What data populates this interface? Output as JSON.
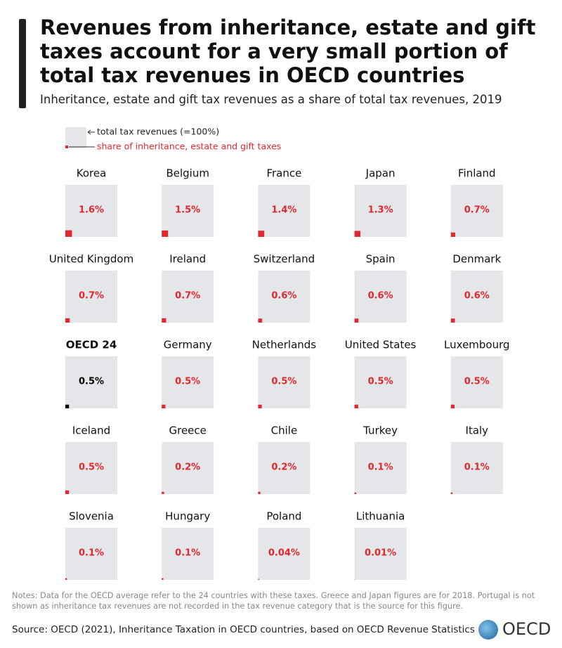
{
  "chart_data": {
    "type": "square-area",
    "title": "Revenues from inheritance, estate and gift taxes account for a very small portion of total tax revenues in OECD countries",
    "subtitle": "Inheritance, estate and gift tax revenues as a share of total tax revenues, 2019",
    "legend": {
      "total": "total tax revenues (=100%)",
      "share": "share of inheritance, estate and gift taxes"
    },
    "categories": [
      "Korea",
      "Belgium",
      "France",
      "Japan",
      "Finland",
      "United Kingdom",
      "Ireland",
      "Switzerland",
      "Spain",
      "Denmark",
      "OECD 24",
      "Germany",
      "Netherlands",
      "United States",
      "Luxembourg",
      "Iceland",
      "Greece",
      "Chile",
      "Turkey",
      "Italy",
      "Slovenia",
      "Hungary",
      "Poland",
      "Lithuania"
    ],
    "values": [
      1.6,
      1.5,
      1.4,
      1.3,
      0.7,
      0.7,
      0.7,
      0.6,
      0.6,
      0.6,
      0.5,
      0.5,
      0.5,
      0.5,
      0.5,
      0.5,
      0.2,
      0.2,
      0.1,
      0.1,
      0.1,
      0.1,
      0.04,
      0.01
    ],
    "value_labels": [
      "1.6%",
      "1.5%",
      "1.4%",
      "1.3%",
      "0.7%",
      "0.7%",
      "0.7%",
      "0.6%",
      "0.6%",
      "0.6%",
      "0.5%",
      "0.5%",
      "0.5%",
      "0.5%",
      "0.5%",
      "0.5%",
      "0.2%",
      "0.2%",
      "0.1%",
      "0.1%",
      "0.1%",
      "0.1%",
      "0.04%",
      "0.01%"
    ],
    "total": 100,
    "color": "#e0282e",
    "highlight": "OECD 24",
    "highlight_color": "#000000",
    "box_color": "#e4e6e9"
  },
  "notes": "Notes: Data for the OECD average refer to the 24 countries with these taxes. Greece and Japan figures are for 2018. Portugal is not shown as inheritance tax revenues are not recorded in the tax revenue category that is the source for this figure.",
  "source": "Source: OECD (2021), Inheritance Taxation in OECD countries, based on OECD Revenue Statistics",
  "logo": "OECD"
}
